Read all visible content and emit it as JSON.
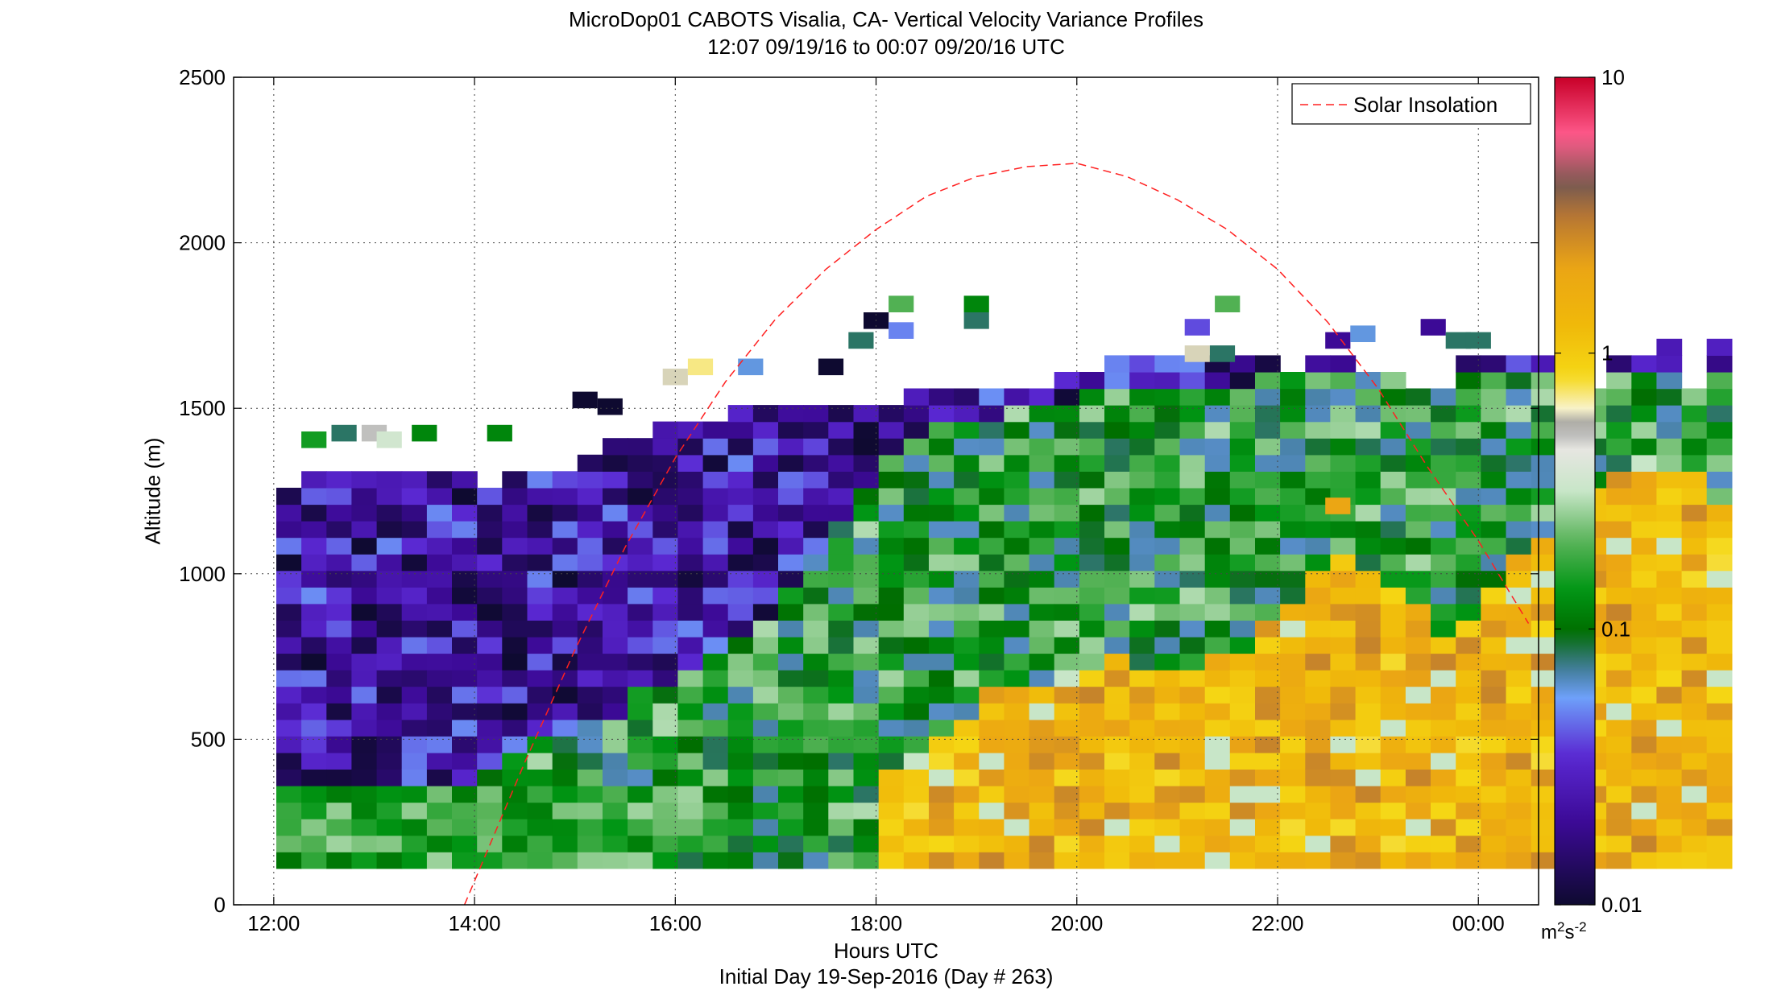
{
  "chart_data": {
    "type": "heatmap",
    "title": "MicroDop01 CABOTS Visalia, CA- Vertical Velocity Variance Profiles",
    "subtitle": "12:07 09/19/16 to 00:07 09/20/16  UTC",
    "xlabel": "Hours UTC",
    "ylabel": "Altitude (m)",
    "footer": "Initial Day 19-Sep-2016 (Day # 263)",
    "xlim": [
      11.6,
      24.6
    ],
    "ylim": [
      0,
      2500
    ],
    "x_ticks": [
      12,
      14,
      16,
      18,
      20,
      22,
      24
    ],
    "x_tick_labels": [
      "12:00",
      "14:00",
      "16:00",
      "18:00",
      "20:00",
      "22:00",
      "00:00"
    ],
    "y_ticks": [
      0,
      500,
      1000,
      1500,
      2000,
      2500
    ],
    "grid": true,
    "colorbar": {
      "scale": "log",
      "range": [
        0.01,
        10
      ],
      "ticks": [
        0.01,
        0.1,
        1,
        10
      ],
      "tick_labels": [
        "0.01",
        "0.1",
        "1",
        "10"
      ],
      "unit_base": "m",
      "unit_exp1": "2",
      "unit_mid": "s",
      "unit_exp2": "-2"
    },
    "legend": {
      "position": "top-right",
      "entries": [
        "Solar Insolation"
      ]
    },
    "series": [
      {
        "name": "Solar Insolation",
        "style": "dashed",
        "color": "#ff2020",
        "x": [
          13.9,
          14.5,
          15.0,
          15.5,
          16.0,
          16.5,
          17.0,
          17.5,
          18.0,
          18.5,
          19.0,
          19.5,
          20.0,
          20.5,
          21.0,
          21.5,
          22.0,
          22.5,
          23.0,
          23.5,
          24.0,
          24.5
        ],
        "y": [
          0,
          430,
          770,
          1080,
          1350,
          1580,
          1770,
          1920,
          2040,
          2140,
          2200,
          2230,
          2240,
          2200,
          2130,
          2040,
          1920,
          1760,
          1560,
          1320,
          1100,
          850
        ]
      }
    ],
    "profiles": {
      "x_start": 12.15,
      "x_step": 0.25,
      "alt_base": 110,
      "alt_step": 50,
      "tops": [
        1250,
        1280,
        1300,
        1290,
        1280,
        1290,
        1280,
        1270,
        1260,
        1290,
        1300,
        1310,
        1340,
        1400,
        1410,
        1430,
        1440,
        1460,
        1490,
        1500,
        1500,
        1500,
        1500,
        1510,
        1510,
        1520,
        1560,
        1560,
        1560,
        1560,
        1560,
        1580,
        1600,
        1640,
        1640,
        1640,
        1640,
        1640,
        1640,
        1640,
        1600,
        1640,
        1640,
        1580,
        1580,
        1560,
        1560,
        1640,
        1640,
        1640,
        1640,
        1640,
        1560,
        1640,
        1640,
        1680,
        1560,
        1680
      ],
      "hi_cut": [
        0,
        0,
        0,
        0,
        0,
        0,
        0,
        0,
        0,
        0,
        0,
        0,
        0,
        0,
        0,
        0,
        0,
        0,
        0,
        0,
        0,
        0,
        0,
        0,
        400,
        450,
        480,
        560,
        620,
        640,
        660,
        700,
        700,
        720,
        700,
        700,
        700,
        740,
        760,
        820,
        880,
        980,
        1040,
        980,
        920,
        880,
        800,
        860,
        920,
        1040,
        1100,
        1200,
        1260,
        1300,
        1340,
        1300,
        1280,
        1200
      ],
      "lo_cut": [
        300,
        320,
        330,
        320,
        320,
        320,
        330,
        360,
        400,
        430,
        470,
        500,
        540,
        560,
        620,
        660,
        700,
        740,
        780,
        860,
        940,
        1040,
        1140,
        1260,
        1360,
        1400,
        1420,
        1440,
        1460,
        1480,
        1500,
        1510,
        1520,
        1520,
        1540,
        1540,
        1540,
        1560,
        1560,
        1570,
        1580,
        1580,
        1580,
        1580,
        1580,
        1580,
        1580,
        1580,
        1580,
        1580,
        1580,
        1580,
        1580,
        1580,
        1580,
        1580,
        1580,
        1580
      ]
    },
    "sparse_cells": [
      {
        "t": 12.4,
        "alt": 1380,
        "v": 0.15
      },
      {
        "t": 12.7,
        "alt": 1400,
        "v": 0.08
      },
      {
        "t": 13.0,
        "alt": 1400,
        "v": 0.5
      },
      {
        "t": 13.15,
        "alt": 1380,
        "v": 0.35
      },
      {
        "t": 13.5,
        "alt": 1400,
        "v": 0.12
      },
      {
        "t": 14.25,
        "alt": 1400,
        "v": 0.12
      },
      {
        "t": 15.1,
        "alt": 1500,
        "v": 0.01
      },
      {
        "t": 15.35,
        "alt": 1480,
        "v": 0.01
      },
      {
        "t": 16.0,
        "alt": 1570,
        "v": 0.6
      },
      {
        "t": 16.25,
        "alt": 1600,
        "v": 0.7
      },
      {
        "t": 16.75,
        "alt": 1600,
        "v": 0.06
      },
      {
        "t": 17.55,
        "alt": 1600,
        "v": 0.01
      },
      {
        "t": 17.85,
        "alt": 1680,
        "v": 0.08
      },
      {
        "t": 18.0,
        "alt": 1740,
        "v": 0.01
      },
      {
        "t": 18.25,
        "alt": 1790,
        "v": 0.2
      },
      {
        "t": 18.25,
        "alt": 1710,
        "v": 0.05
      },
      {
        "t": 19.0,
        "alt": 1790,
        "v": 0.12
      },
      {
        "t": 19.0,
        "alt": 1740,
        "v": 0.08
      },
      {
        "t": 21.5,
        "alt": 1790,
        "v": 0.2
      },
      {
        "t": 21.2,
        "alt": 1720,
        "v": 0.04
      },
      {
        "t": 21.2,
        "alt": 1640,
        "v": 0.6
      },
      {
        "t": 21.45,
        "alt": 1640,
        "v": 0.08
      },
      {
        "t": 22.6,
        "alt": 1680,
        "v": 0.02
      },
      {
        "t": 22.85,
        "alt": 1700,
        "v": 0.06
      },
      {
        "t": 23.55,
        "alt": 1720,
        "v": 0.02
      },
      {
        "t": 23.8,
        "alt": 1680,
        "v": 0.08
      },
      {
        "t": 24.0,
        "alt": 1680,
        "v": 0.08
      },
      {
        "t": 22.6,
        "alt": 1180,
        "v": 2.0
      }
    ]
  }
}
